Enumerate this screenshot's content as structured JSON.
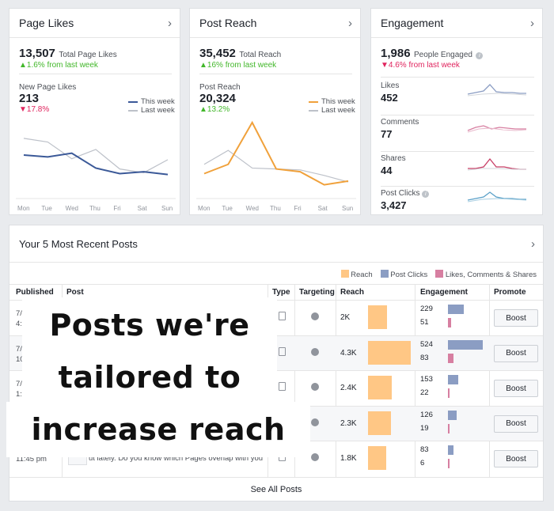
{
  "page_likes": {
    "title": "Page Likes",
    "total_value": "13,507",
    "total_label": "Total Page Likes",
    "trend": "▲1.6% from last week",
    "sub_label": "New Page Likes",
    "sub_value": "213",
    "sub_trend": "▼17.8%",
    "legend": [
      "This week",
      "Last week"
    ]
  },
  "post_reach": {
    "title": "Post Reach",
    "total_value": "35,452",
    "total_label": "Total Reach",
    "trend": "▲16% from last week",
    "sub_label": "Post Reach",
    "sub_value": "20,324",
    "sub_trend": "▲13.2%",
    "legend": [
      "This week",
      "Last week"
    ]
  },
  "engagement": {
    "title": "Engagement",
    "total_value": "1,986",
    "total_label": "People Engaged",
    "trend": "▼4.6% from last week",
    "rows": [
      {
        "label": "Likes",
        "value": "452"
      },
      {
        "label": "Comments",
        "value": "77"
      },
      {
        "label": "Shares",
        "value": "44"
      },
      {
        "label": "Post Clicks",
        "value": "3,427"
      }
    ]
  },
  "days": [
    "Mon",
    "Tue",
    "Wed",
    "Thu",
    "Fri",
    "Sat",
    "Sun"
  ],
  "colors": {
    "likes_this": "#3b5998",
    "reach_this": "#f0a13b",
    "last_week": "#bdc1c9",
    "reach_bar": "#ffc785",
    "clicks_bar": "#8b9dc3",
    "lcs_bar": "#d77fa1",
    "likes_spark": "#8b9dc3",
    "comments_spark": "#d77fa1",
    "shares_spark": "#c73d65",
    "clicks_spark": "#5aa0c8"
  },
  "chart_data": [
    {
      "type": "line",
      "categories": [
        "Mon",
        "Tue",
        "Wed",
        "Thu",
        "Fri",
        "Sat",
        "Sun"
      ],
      "series": [
        {
          "name": "This week",
          "values": [
            40,
            38,
            42,
            26,
            20,
            22,
            19
          ]
        },
        {
          "name": "Last week",
          "values": [
            58,
            54,
            36,
            46,
            25,
            21,
            35
          ]
        }
      ]
    },
    {
      "type": "line",
      "categories": [
        "Mon",
        "Tue",
        "Wed",
        "Thu",
        "Fri",
        "Sat",
        "Sun"
      ],
      "series": [
        {
          "name": "This week",
          "values": [
            20,
            30,
            75,
            25,
            22,
            8,
            12
          ]
        },
        {
          "name": "Last week",
          "values": [
            30,
            45,
            26,
            25,
            24,
            18,
            11
          ]
        }
      ]
    }
  ],
  "posts": {
    "title": "Your 5 Most Recent Posts",
    "legend": [
      "Reach",
      "Post Clicks",
      "Likes, Comments & Shares"
    ],
    "columns": [
      "Published",
      "Post",
      "Type",
      "Targeting",
      "Reach",
      "Engagement",
      "Promote"
    ],
    "rows": [
      {
        "published": "7/",
        "published2": "4:",
        "post": "",
        "reach": "2K",
        "reach_pct": 0.45,
        "clicks": "229",
        "clicks_pct": 0.45,
        "lcs": "51",
        "lcs_pct": 0.1
      },
      {
        "published": "7/",
        "published2": "10",
        "post": "",
        "reach": "4.3K",
        "reach_pct": 1.0,
        "clicks": "524",
        "clicks_pct": 1.0,
        "lcs": "83",
        "lcs_pct": 0.16
      },
      {
        "published": "7/",
        "published2": "1:",
        "post": "",
        "reach": "2.4K",
        "reach_pct": 0.55,
        "clicks": "153",
        "clicks_pct": 0.3,
        "lcs": "22",
        "lcs_pct": 0.05
      },
      {
        "published": "",
        "published2": "",
        "post": "",
        "reach": "2.3K",
        "reach_pct": 0.53,
        "clicks": "126",
        "clicks_pct": 0.24,
        "lcs": "19",
        "lcs_pct": 0.04
      },
      {
        "published": "11:45 pm",
        "published2": "",
        "post": "ut lately. Do you know which Pages overlap with you",
        "reach": "1.8K",
        "reach_pct": 0.42,
        "clicks": "83",
        "clicks_pct": 0.16,
        "lcs": "6",
        "lcs_pct": 0.02
      }
    ],
    "boost_label": "Boost",
    "see_all": "See All Posts"
  },
  "overlay": {
    "line1": "Posts we're",
    "line2": "tailored to",
    "line3": "increase reach"
  }
}
